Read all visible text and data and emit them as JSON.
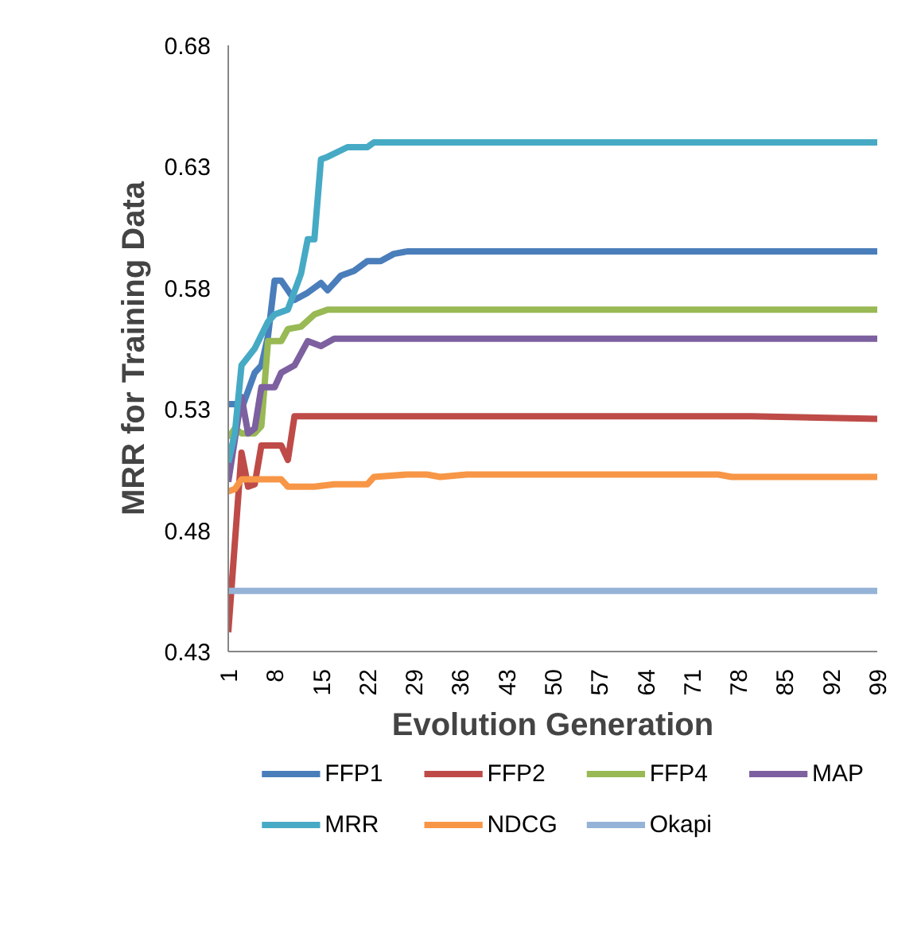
{
  "chart_data": {
    "type": "line",
    "xlabel": "Evolution Generation",
    "ylabel": "MRR for Training Data",
    "xlim": [
      1,
      99
    ],
    "xticks": [
      1,
      8,
      15,
      22,
      29,
      36,
      43,
      50,
      57,
      64,
      71,
      78,
      85,
      92,
      99
    ],
    "ylim": [
      0.43,
      0.68
    ],
    "yticks": [
      0.43,
      0.48,
      0.53,
      0.58,
      0.63,
      0.68
    ],
    "grid": false,
    "legend": "bottom",
    "line_style": "solid",
    "marker": "none",
    "series": [
      {
        "name": "FFP1",
        "color": "#4a7ebb",
        "x": [
          1,
          2,
          3,
          5,
          6,
          7,
          8,
          9,
          11,
          13,
          15,
          16,
          18,
          20,
          22,
          24,
          26,
          28,
          99
        ],
        "values": [
          0.532,
          0.532,
          0.53,
          0.545,
          0.548,
          0.56,
          0.583,
          0.583,
          0.575,
          0.578,
          0.582,
          0.579,
          0.585,
          0.587,
          0.591,
          0.591,
          0.594,
          0.595,
          0.595
        ]
      },
      {
        "name": "FFP2",
        "color": "#be4b48",
        "x": [
          1,
          3,
          4,
          5,
          6,
          9,
          10,
          11,
          80,
          99
        ],
        "values": [
          0.438,
          0.512,
          0.498,
          0.499,
          0.515,
          0.515,
          0.509,
          0.527,
          0.527,
          0.526
        ]
      },
      {
        "name": "FFP4",
        "color": "#98b954",
        "x": [
          1,
          2,
          3,
          5,
          6,
          7,
          9,
          10,
          12,
          14,
          16,
          99
        ],
        "values": [
          0.518,
          0.522,
          0.52,
          0.52,
          0.523,
          0.558,
          0.558,
          0.563,
          0.564,
          0.569,
          0.571,
          0.571
        ]
      },
      {
        "name": "MAP",
        "color": "#7d60a0",
        "x": [
          1,
          3,
          4,
          5,
          6,
          8,
          9,
          11,
          13,
          15,
          17,
          99
        ],
        "values": [
          0.5,
          0.535,
          0.52,
          0.522,
          0.539,
          0.539,
          0.545,
          0.548,
          0.558,
          0.556,
          0.559,
          0.559
        ]
      },
      {
        "name": "MRR",
        "color": "#46aac5",
        "x": [
          1,
          2,
          3,
          5,
          7,
          8,
          10,
          12,
          13,
          14,
          15,
          16,
          19,
          22,
          23,
          99
        ],
        "values": [
          0.508,
          0.52,
          0.548,
          0.555,
          0.566,
          0.569,
          0.571,
          0.586,
          0.6,
          0.6,
          0.633,
          0.634,
          0.638,
          0.638,
          0.64,
          0.64
        ]
      },
      {
        "name": "NDCG",
        "color": "#f79646",
        "x": [
          1,
          2,
          3,
          9,
          10,
          14,
          17,
          22,
          23,
          28,
          31,
          33,
          37,
          75,
          77,
          99
        ],
        "values": [
          0.496,
          0.497,
          0.501,
          0.501,
          0.498,
          0.498,
          0.499,
          0.499,
          0.502,
          0.503,
          0.503,
          0.502,
          0.503,
          0.503,
          0.502,
          0.502
        ]
      },
      {
        "name": "Okapi",
        "color": "#95b3d7",
        "x": [
          1,
          99
        ],
        "values": [
          0.455,
          0.455
        ]
      }
    ]
  }
}
